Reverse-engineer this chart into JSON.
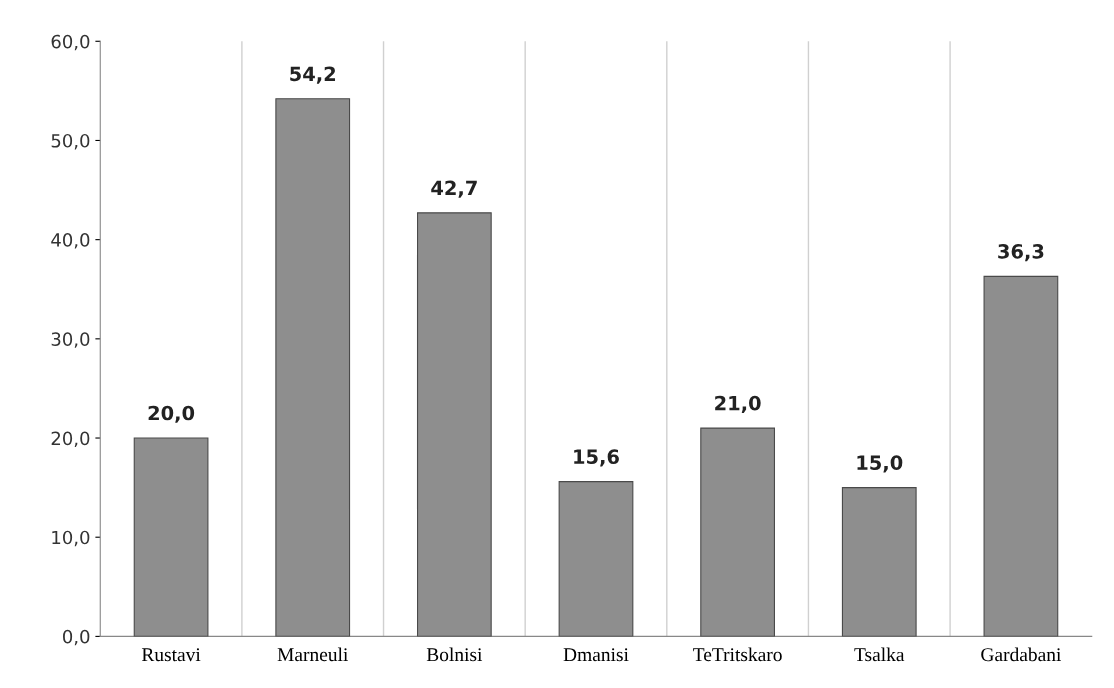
{
  "chart_data": {
    "type": "bar",
    "categories": [
      "Rustavi",
      "Marneuli",
      "Bolnisi",
      "Dmanisi",
      "TeTritskaro",
      "Tsalka",
      "Gardabani"
    ],
    "values": [
      20.0,
      54.2,
      42.7,
      15.6,
      21.0,
      15.0,
      36.3
    ],
    "value_labels": [
      "20,0",
      "54,2",
      "42,7",
      "15,6",
      "21,0",
      "15,0",
      "36,3"
    ],
    "color": "#8e8e8e",
    "ylim": [
      0,
      60
    ],
    "yticks": [
      {
        "value": 0,
        "label": "0,0"
      },
      {
        "value": 10,
        "label": "10,0"
      },
      {
        "value": 20,
        "label": "20,0"
      },
      {
        "value": 30,
        "label": "30,0"
      },
      {
        "value": 40,
        "label": "40,0"
      },
      {
        "value": 50,
        "label": "50,0"
      },
      {
        "value": 60,
        "label": "60,0"
      }
    ],
    "grid": "x"
  }
}
